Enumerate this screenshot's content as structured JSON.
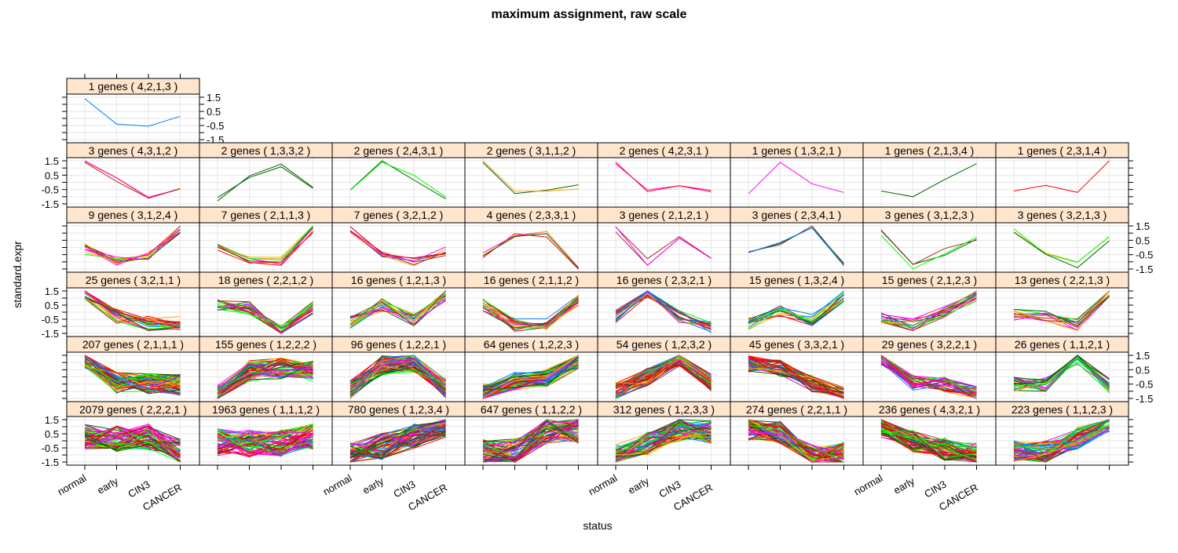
{
  "chart_data": {
    "type": "line",
    "title": "maximum assignment, raw scale",
    "xlabel": "status",
    "ylabel": "standard.expr",
    "categories": [
      "normal",
      "early",
      "CIN3",
      "CANCER"
    ],
    "ylim": [
      -1.72,
      1.72
    ],
    "yticks": [
      1.5,
      0.5,
      -0.5,
      -1.5
    ],
    "grid": true,
    "palette": [
      "#0080ff",
      "#ff00ff",
      "#006400",
      "#ff0000",
      "#ffa500",
      "#00ff00",
      "#a52a2a"
    ],
    "strip_color": "#ffe5cc",
    "rows": [
      [
        {
          "label": "1 genes ( 4,2,1,3 )",
          "n": 1,
          "profile": [
            1.4,
            -0.4,
            -0.55,
            0.15
          ]
        }
      ],
      [
        {
          "label": "3 genes ( 4,3,1,2 )",
          "n": 3,
          "profile": [
            1.35,
            0.2,
            -0.95,
            -0.6
          ]
        },
        {
          "label": "2 genes ( 1,3,3,2 )",
          "n": 2,
          "profile": [
            -1.2,
            0.5,
            1.1,
            -0.5
          ]
        },
        {
          "label": "2 genes ( 2,4,3,1 )",
          "n": 2,
          "profile": [
            -0.5,
            1.4,
            0.3,
            -1.0
          ]
        },
        {
          "label": "2 genes ( 3,1,1,2 )",
          "n": 2,
          "profile": [
            1.5,
            -0.75,
            -0.7,
            -0.3
          ]
        },
        {
          "label": "2 genes ( 4,2,3,1 )",
          "n": 2,
          "profile": [
            1.45,
            -0.6,
            -0.2,
            -0.75
          ]
        },
        {
          "label": "1 genes ( 1,3,2,1 )",
          "n": 1,
          "profile": [
            -0.8,
            1.4,
            -0.1,
            -0.7
          ]
        },
        {
          "label": "1 genes ( 2,1,3,4 )",
          "n": 1,
          "profile": [
            -0.6,
            -1.0,
            0.2,
            1.3
          ]
        },
        {
          "label": "1 genes ( 2,3,1,4 )",
          "n": 1,
          "profile": [
            -0.6,
            -0.2,
            -0.7,
            1.5
          ]
        }
      ],
      [
        {
          "label": "9 genes ( 3,1,2,4 )",
          "n": 9,
          "profile": [
            -0.1,
            -0.9,
            -0.7,
            1.4
          ]
        },
        {
          "label": "7 genes ( 2,1,1,3 )",
          "n": 7,
          "profile": [
            -0.1,
            -0.9,
            -0.9,
            1.3
          ]
        },
        {
          "label": "7 genes ( 3,2,1,2 )",
          "n": 7,
          "profile": [
            1.3,
            -0.3,
            -1.0,
            -0.3
          ]
        },
        {
          "label": "4 genes ( 2,3,3,1 )",
          "n": 4,
          "profile": [
            -0.5,
            0.8,
            1.0,
            -1.5
          ]
        },
        {
          "label": "3 genes ( 2,1,2,1 )",
          "n": 3,
          "profile": [
            1.2,
            -1.0,
            0.7,
            -0.7
          ]
        },
        {
          "label": "3 genes ( 2,3,4,1 )",
          "n": 3,
          "profile": [
            -0.5,
            0.3,
            1.3,
            -1.3
          ]
        },
        {
          "label": "3 genes ( 3,1,2,3 )",
          "n": 3,
          "profile": [
            1.0,
            -1.3,
            -0.3,
            0.5
          ]
        },
        {
          "label": "3 genes ( 3,2,1,3 )",
          "n": 3,
          "profile": [
            1.2,
            -0.3,
            -1.2,
            0.6
          ]
        }
      ],
      [
        {
          "label": "25 genes ( 3,2,1,1 )",
          "n": 25,
          "profile": [
            1.4,
            -0.3,
            -0.8,
            -0.8
          ]
        },
        {
          "label": "18 genes ( 2,2,1,2 )",
          "n": 18,
          "profile": [
            0.5,
            0.3,
            -1.4,
            0.3
          ]
        },
        {
          "label": "16 genes ( 1,2,1,3 )",
          "n": 16,
          "profile": [
            -0.7,
            0.5,
            -0.5,
            1.2
          ]
        },
        {
          "label": "16 genes ( 2,1,1,2 )",
          "n": 16,
          "profile": [
            0.5,
            -0.9,
            -0.9,
            0.8
          ]
        },
        {
          "label": "16 genes ( 2,3,2,1 )",
          "n": 16,
          "profile": [
            -0.3,
            1.4,
            -0.3,
            -1.0
          ]
        },
        {
          "label": "15 genes ( 1,3,2,4 )",
          "n": 15,
          "profile": [
            -0.8,
            0.1,
            -0.5,
            1.2
          ]
        },
        {
          "label": "15 genes ( 2,1,2,3 )",
          "n": 15,
          "profile": [
            -0.4,
            -0.9,
            0.1,
            1.2
          ]
        },
        {
          "label": "13 genes ( 2,2,1,3 )",
          "n": 13,
          "profile": [
            -0.2,
            -0.2,
            -0.9,
            1.4
          ]
        }
      ],
      [
        {
          "label": "207 genes ( 2,1,1,1 )",
          "n": 207,
          "profile": [
            1.4,
            -0.4,
            -0.4,
            -0.5
          ]
        },
        {
          "label": "155 genes ( 1,2,2,2 )",
          "n": 155,
          "profile": [
            -1.3,
            0.4,
            0.6,
            0.4
          ]
        },
        {
          "label": "96 genes ( 1,2,2,1 )",
          "n": 96,
          "profile": [
            -0.9,
            0.8,
            1.0,
            -0.8
          ]
        },
        {
          "label": "64 genes ( 1,2,2,3 )",
          "n": 64,
          "profile": [
            -1.1,
            -0.3,
            -0.1,
            1.2
          ]
        },
        {
          "label": "54 genes ( 1,2,3,2 )",
          "n": 54,
          "profile": [
            -1.0,
            0.0,
            1.3,
            -0.4
          ]
        },
        {
          "label": "45 genes ( 3,3,2,1 )",
          "n": 45,
          "profile": [
            0.9,
            0.6,
            -0.5,
            -1.3
          ]
        },
        {
          "label": "29 genes ( 3,2,2,1 )",
          "n": 29,
          "profile": [
            1.3,
            -0.4,
            -0.5,
            -1.2
          ]
        },
        {
          "label": "26 genes ( 1,1,2,1 )",
          "n": 26,
          "profile": [
            -0.5,
            -0.5,
            1.4,
            -0.6
          ]
        }
      ],
      [
        {
          "label": "2079 genes ( 2,2,2,1 )",
          "n": 2079,
          "profile": [
            0.3,
            0.2,
            0.3,
            -0.8
          ]
        },
        {
          "label": "1963 genes ( 1,1,1,2 )",
          "n": 1963,
          "profile": [
            -0.1,
            -0.2,
            -0.2,
            0.3
          ]
        },
        {
          "label": "780 genes ( 1,2,3,4 )",
          "n": 780,
          "profile": [
            -1.0,
            -0.4,
            0.3,
            1.1
          ]
        },
        {
          "label": "647 genes ( 1,1,2,2 )",
          "n": 647,
          "profile": [
            -0.8,
            -0.7,
            0.7,
            0.7
          ]
        },
        {
          "label": "312 genes ( 1,2,3,3 )",
          "n": 312,
          "profile": [
            -1.1,
            -0.2,
            0.8,
            0.6
          ]
        },
        {
          "label": "274 genes ( 2,2,1,1 )",
          "n": 274,
          "profile": [
            0.8,
            0.6,
            -1.0,
            -0.9
          ]
        },
        {
          "label": "236 genes ( 4,3,2,1 )",
          "n": 236,
          "profile": [
            1.0,
            0.0,
            -0.6,
            -0.9
          ]
        },
        {
          "label": "223 genes ( 1,1,2,3 )",
          "n": 223,
          "profile": [
            -0.7,
            -0.8,
            0.2,
            1.4
          ]
        }
      ]
    ]
  }
}
